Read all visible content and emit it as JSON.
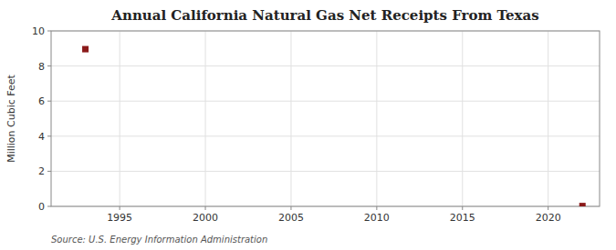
{
  "chart_data": {
    "type": "scatter",
    "title": "Annual California Natural Gas Net Receipts From Texas",
    "ylabel": "Million Cubic Feet",
    "source": "Source: U.S. Energy Information Administration",
    "x": [
      1993,
      2022
    ],
    "values": [
      8.96,
      0.02
    ],
    "color": "#8b1a1a",
    "marker": "square",
    "xlim": [
      1991,
      2023
    ],
    "ylim": [
      0,
      10
    ],
    "xticks": [
      1995,
      2000,
      2005,
      2010,
      2015,
      2020
    ],
    "yticks": [
      0,
      2,
      4,
      6,
      8,
      10
    ],
    "grid": true
  }
}
